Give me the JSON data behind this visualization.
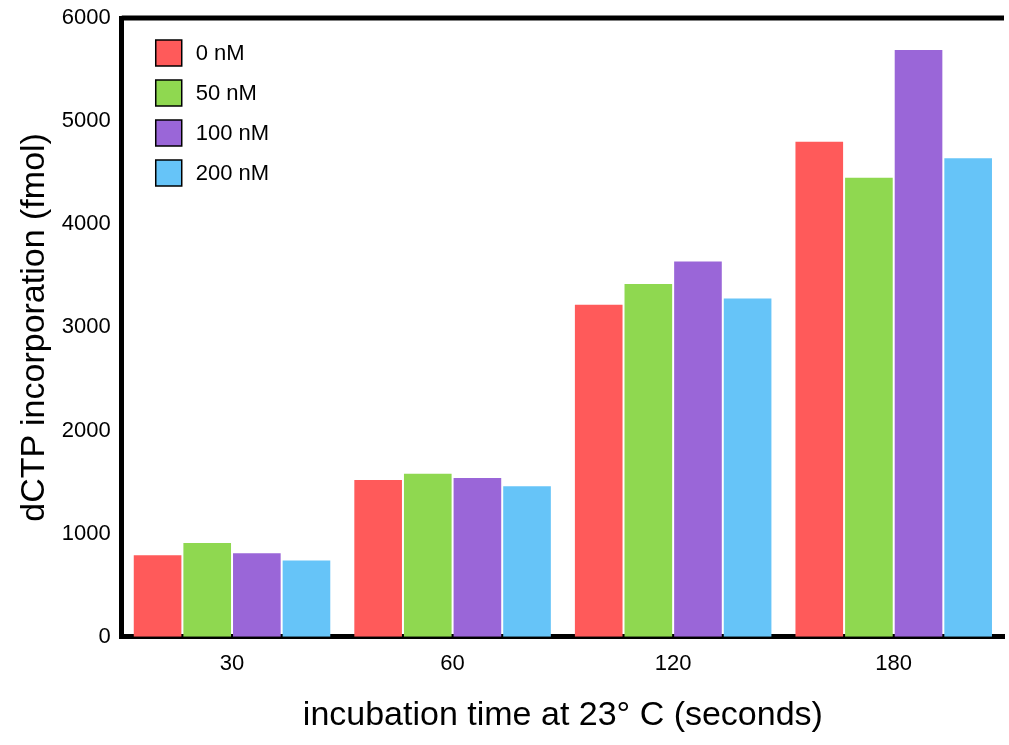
{
  "chart_data": {
    "type": "bar",
    "xlabel": "incubation time at 23° C (seconds)",
    "ylabel": "dCTP incorporation (fmol)",
    "categories": [
      "30",
      "60",
      "120",
      "180"
    ],
    "series": [
      {
        "name": "0 nM",
        "color": "#ff5a5a",
        "values": [
          790,
          1520,
          3220,
          4800
        ]
      },
      {
        "name": "50 nM",
        "color": "#8fd850",
        "values": [
          910,
          1580,
          3420,
          4450
        ]
      },
      {
        "name": "100 nM",
        "color": "#9a66d8",
        "values": [
          810,
          1540,
          3640,
          5690
        ]
      },
      {
        "name": "200 nM",
        "color": "#66c4f8",
        "values": [
          740,
          1460,
          3280,
          4640
        ]
      }
    ],
    "ylim": [
      0,
      6000
    ],
    "yticks": [
      0,
      1000,
      2000,
      3000,
      4000,
      5000,
      6000
    ],
    "grid": false,
    "legend": "top left"
  }
}
